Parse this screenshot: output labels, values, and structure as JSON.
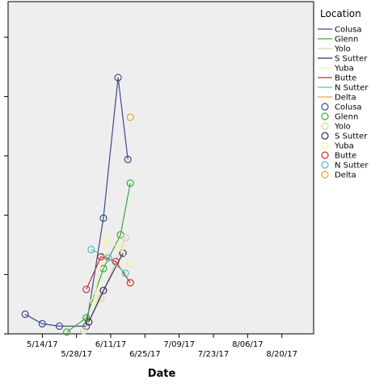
{
  "chart_data": {
    "type": "line",
    "title": "",
    "xlabel": "Date",
    "ylabel": "",
    "x_type": "date",
    "xlim": [
      "2017-04-30",
      "2017-09-02"
    ],
    "ylim": [
      0,
      5.6
    ],
    "y_ticks": [
      0,
      1,
      2,
      3,
      4,
      5
    ],
    "grid": false,
    "plot_background": "#eeeeee",
    "x_tick_labels": [
      {
        "date": "2017-05-14",
        "label": "5/14/17",
        "row": 1
      },
      {
        "date": "2017-05-28",
        "label": "5/28/17",
        "row": 2
      },
      {
        "date": "2017-06-11",
        "label": "6/11/17",
        "row": 1
      },
      {
        "date": "2017-06-25",
        "label": "6/25/17",
        "row": 2
      },
      {
        "date": "2017-07-09",
        "label": "7/09/17",
        "row": 1
      },
      {
        "date": "2017-07-23",
        "label": "7/23/17",
        "row": 2
      },
      {
        "date": "2017-08-06",
        "label": "8/06/17",
        "row": 1
      },
      {
        "date": "2017-08-20",
        "label": "8/20/17",
        "row": 2
      }
    ],
    "legend": {
      "title": "Location",
      "placement": "right",
      "line_entries": [
        "Colusa",
        "Glenn",
        "Yolo",
        "S Sutter",
        "Yuba",
        "Butte",
        "N Sutter",
        "Delta"
      ],
      "marker_entries": [
        "Colusa",
        "Glenn",
        "Yolo",
        "S Sutter",
        "Yuba",
        "Butte",
        "N Sutter",
        "Delta"
      ]
    },
    "series": [
      {
        "name": "Colusa",
        "color": "#3d4a8c",
        "points": [
          {
            "x": "2017-05-07",
            "y": 0.33
          },
          {
            "x": "2017-05-14",
            "y": 0.17
          },
          {
            "x": "2017-05-21",
            "y": 0.13
          },
          {
            "x": "2017-06-01",
            "y": 0.13
          },
          {
            "x": "2017-06-08",
            "y": 1.95
          },
          {
            "x": "2017-06-14",
            "y": 4.32
          },
          {
            "x": "2017-06-18",
            "y": 2.94
          }
        ]
      },
      {
        "name": "Glenn",
        "color": "#3aaa35",
        "points": [
          {
            "x": "2017-05-24",
            "y": 0.03
          },
          {
            "x": "2017-06-01",
            "y": 0.27
          },
          {
            "x": "2017-06-08",
            "y": 1.1
          },
          {
            "x": "2017-06-15",
            "y": 1.67
          },
          {
            "x": "2017-06-19",
            "y": 2.54
          }
        ]
      },
      {
        "name": "Yolo",
        "color": "#d7d0a8",
        "points": [
          {
            "x": "2017-05-31",
            "y": 0.05
          },
          {
            "x": "2017-06-07",
            "y": 0.6
          },
          {
            "x": "2017-06-17",
            "y": 1.62
          }
        ]
      },
      {
        "name": "S Sutter",
        "color": "#3a2a5e",
        "points": [
          {
            "x": "2017-06-02",
            "y": 0.2
          },
          {
            "x": "2017-06-08",
            "y": 0.73
          },
          {
            "x": "2017-06-16",
            "y": 1.36
          }
        ]
      },
      {
        "name": "Yuba",
        "color": "#f7f39a",
        "points": [
          {
            "x": "2017-06-04",
            "y": 0.55
          },
          {
            "x": "2017-06-09",
            "y": 1.6
          },
          {
            "x": "2017-06-15",
            "y": 1.45
          },
          {
            "x": "2017-06-19",
            "y": 1.18
          }
        ]
      },
      {
        "name": "Butte",
        "color": "#cc2a3a",
        "points": [
          {
            "x": "2017-06-01",
            "y": 0.75
          },
          {
            "x": "2017-06-07",
            "y": 1.3
          },
          {
            "x": "2017-06-13",
            "y": 1.22
          },
          {
            "x": "2017-06-19",
            "y": 0.86
          }
        ]
      },
      {
        "name": "N Sutter",
        "color": "#5bbfb5",
        "points": [
          {
            "x": "2017-06-03",
            "y": 1.42
          },
          {
            "x": "2017-06-10",
            "y": 1.28
          },
          {
            "x": "2017-06-17",
            "y": 1.02
          }
        ]
      },
      {
        "name": "Delta",
        "color": "#e8a33a",
        "points": [
          {
            "x": "2017-06-19",
            "y": 3.65
          }
        ]
      }
    ]
  }
}
